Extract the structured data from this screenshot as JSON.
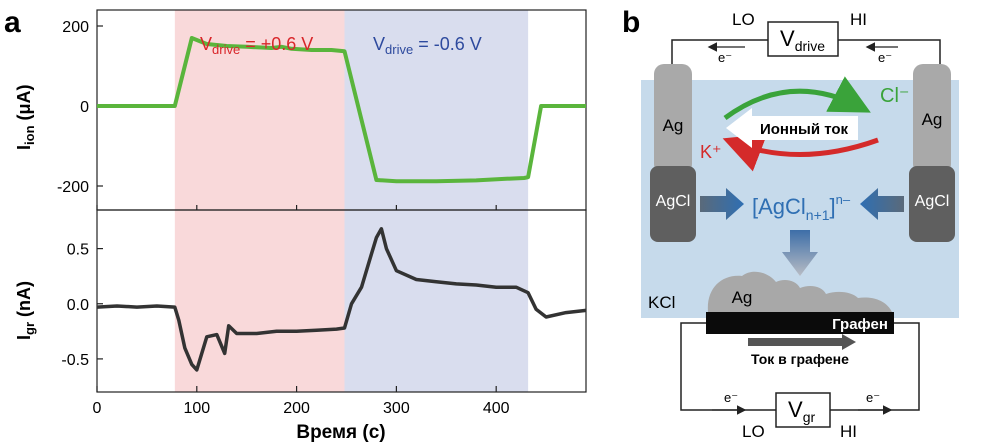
{
  "panel_a": {
    "letter": "a",
    "drive_pos_main": "V",
    "drive_pos_sub": "drive",
    "drive_pos_rest": " = +0.6 V",
    "drive_neg_main": "V",
    "drive_neg_sub": "drive",
    "drive_neg_rest": " = -0.6 V",
    "colors": {
      "pink": "#f9d9da",
      "blue": "#d9ddee",
      "green": "#5ab53c",
      "black": "#333333",
      "red": "#d9262a",
      "navy": "#2e4a9e"
    }
  },
  "chart_data": [
    {
      "type": "line",
      "title": "",
      "ylabel_main": "I",
      "ylabel_sub": "ion",
      "ylabel_rest": " (μA)",
      "xlim": [
        0,
        490
      ],
      "ylim": [
        -260,
        240
      ],
      "yticks": [
        200,
        0,
        -200
      ],
      "ytick_labels": [
        "200",
        "0",
        "-200"
      ],
      "shaded": [
        {
          "from": 78,
          "to": 248,
          "label": "Vdrive = +0.6 V"
        },
        {
          "from": 248,
          "to": 432,
          "label": "Vdrive = -0.6 V"
        }
      ],
      "series": [
        {
          "name": "I_ion",
          "x": [
            0,
            78,
            95,
            100,
            110,
            130,
            150,
            175,
            185,
            195,
            215,
            235,
            248,
            280,
            300,
            340,
            380,
            410,
            428,
            432,
            445,
            450,
            490
          ],
          "y": [
            0,
            0,
            170,
            165,
            155,
            150,
            148,
            145,
            148,
            143,
            140,
            140,
            137,
            -185,
            -188,
            -188,
            -186,
            -182,
            -180,
            -178,
            0,
            0,
            0
          ]
        }
      ]
    },
    {
      "type": "line",
      "ylabel_main": "I",
      "ylabel_sub": "gr",
      "ylabel_rest": " (nA)",
      "xlabel": "Время (с)",
      "xlim": [
        0,
        490
      ],
      "ylim": [
        -0.8,
        0.85
      ],
      "yticks": [
        0.5,
        0.0,
        -0.5
      ],
      "ytick_labels": [
        "0.5",
        "0.0",
        "-0.5"
      ],
      "xticks": [
        0,
        100,
        200,
        300,
        400
      ],
      "xtick_labels": [
        "0",
        "100",
        "200",
        "300",
        "400"
      ],
      "series": [
        {
          "name": "I_gr",
          "x": [
            0,
            20,
            40,
            60,
            78,
            82,
            88,
            95,
            100,
            110,
            120,
            128,
            132,
            140,
            160,
            180,
            200,
            220,
            240,
            248,
            255,
            265,
            275,
            280,
            285,
            290,
            300,
            320,
            340,
            360,
            380,
            400,
            420,
            432,
            440,
            450,
            470,
            490
          ],
          "y": [
            -0.03,
            -0.02,
            -0.03,
            -0.02,
            -0.03,
            -0.15,
            -0.4,
            -0.55,
            -0.6,
            -0.3,
            -0.28,
            -0.45,
            -0.2,
            -0.27,
            -0.27,
            -0.25,
            -0.25,
            -0.24,
            -0.23,
            -0.22,
            0.0,
            0.15,
            0.45,
            0.6,
            0.68,
            0.5,
            0.3,
            0.22,
            0.2,
            0.18,
            0.17,
            0.15,
            0.15,
            0.1,
            -0.05,
            -0.12,
            -0.08,
            -0.06
          ]
        }
      ]
    }
  ],
  "panel_b": {
    "letter": "b",
    "lo_top": "LO",
    "hi_top": "HI",
    "vdrive_main": "V",
    "vdrive_sub": "drive",
    "electron": "e⁻",
    "ag_left": "Ag",
    "ag_right": "Ag",
    "agcl_left": "AgCl",
    "agcl_right": "AgCl",
    "cl_ion": "Cl⁻",
    "k_ion": "K⁺",
    "ionic_current": "Ионный ток",
    "complex_main": "[AgCl",
    "complex_sub": "n+1",
    "complex_close": "]",
    "complex_sup": "n–",
    "kcl": "KCl",
    "ag_deposit": "Ag",
    "graphene": "Графен",
    "graphene_current": "Ток в графене",
    "lo_bottom": "LO",
    "hi_bottom": "HI",
    "vgr_main": "V",
    "vgr_sub": "gr",
    "colors": {
      "solution": "#c6daeb",
      "electrode_ag": "#a9a9a9",
      "electrode_agcl": "#5f5f5f",
      "graphene": "#0b0b0b",
      "arrow_blue": "#3d6ea8",
      "cl_green": "#3aa33a",
      "k_red": "#d42a2a",
      "complex_blue": "#2f6fb3"
    }
  }
}
